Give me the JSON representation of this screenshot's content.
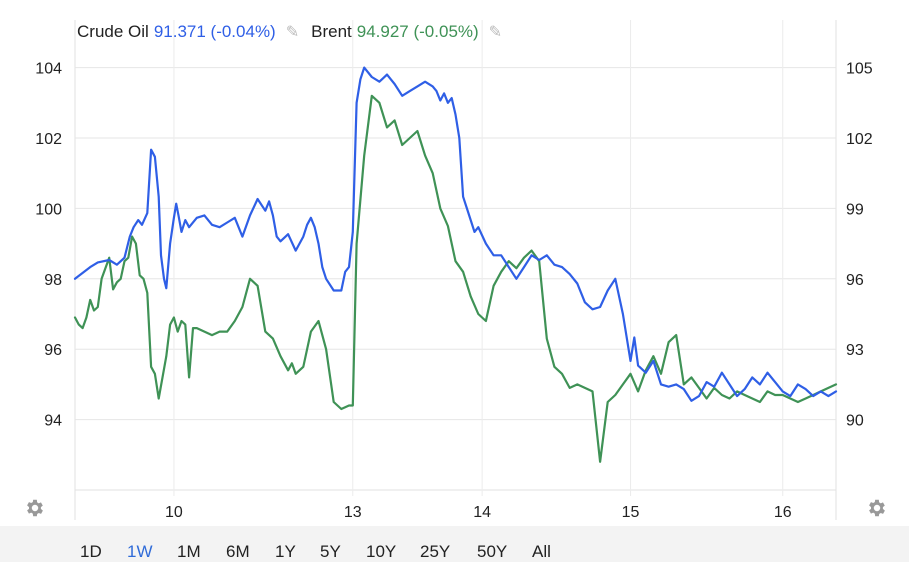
{
  "legend": {
    "series1": {
      "name": "Crude Oil",
      "value": "91.371 (-0.04%)",
      "color": "#2f5fe6",
      "edit_icon": "pencil-icon"
    },
    "series2": {
      "name": "Brent",
      "value": "94.927 (-0.05%)",
      "color": "#3f9256",
      "edit_icon": "pencil-icon"
    }
  },
  "settings_icon": "gear-icon",
  "range_buttons": [
    "1D",
    "1W",
    "1M",
    "6M",
    "1Y",
    "5Y",
    "10Y",
    "25Y",
    "50Y",
    "All"
  ],
  "active_range": "1W",
  "chart_data": {
    "type": "line",
    "x_axis": {
      "ticks": [
        "10",
        "13",
        "14",
        "15",
        "16"
      ],
      "tick_positions": [
        0.13,
        0.365,
        0.535,
        0.73,
        0.93
      ],
      "range": [
        0,
        1
      ]
    },
    "left_axis": {
      "ticks": [
        "94",
        "96",
        "98",
        "100",
        "102",
        "104"
      ],
      "range": [
        92,
        104.5
      ]
    },
    "right_axis": {
      "ticks": [
        "90",
        "93",
        "96",
        "99",
        "102",
        "105"
      ],
      "range": [
        87,
        105.75
      ]
    },
    "grid": true,
    "series": [
      {
        "name": "Crude Oil",
        "axis": "right",
        "color": "#2f5fe6",
        "x": [
          0.0,
          0.02,
          0.03,
          0.045,
          0.055,
          0.065,
          0.072,
          0.077,
          0.083,
          0.088,
          0.095,
          0.1,
          0.105,
          0.11,
          0.113,
          0.117,
          0.12,
          0.125,
          0.13,
          0.133,
          0.136,
          0.14,
          0.145,
          0.15,
          0.16,
          0.17,
          0.18,
          0.19,
          0.2,
          0.21,
          0.22,
          0.23,
          0.24,
          0.25,
          0.255,
          0.26,
          0.265,
          0.27,
          0.28,
          0.29,
          0.3,
          0.305,
          0.31,
          0.315,
          0.32,
          0.325,
          0.33,
          0.34,
          0.35,
          0.355,
          0.36,
          0.365,
          0.37,
          0.375,
          0.38,
          0.39,
          0.4,
          0.41,
          0.415,
          0.42,
          0.43,
          0.44,
          0.45,
          0.46,
          0.47,
          0.475,
          0.48,
          0.485,
          0.49,
          0.495,
          0.5,
          0.505,
          0.51,
          0.515,
          0.52,
          0.525,
          0.53,
          0.54,
          0.55,
          0.56,
          0.57,
          0.58,
          0.59,
          0.6,
          0.61,
          0.62,
          0.63,
          0.64,
          0.65,
          0.66,
          0.67,
          0.68,
          0.69,
          0.7,
          0.71,
          0.72,
          0.73,
          0.735,
          0.74,
          0.75,
          0.76,
          0.77,
          0.78,
          0.79,
          0.8,
          0.81,
          0.82,
          0.83,
          0.84,
          0.85,
          0.86,
          0.87,
          0.88,
          0.89,
          0.9,
          0.91,
          0.92,
          0.93,
          0.94,
          0.95,
          0.96,
          0.97,
          0.98,
          0.99,
          1.0
        ],
        "values": [
          96.0,
          96.5,
          96.7,
          96.8,
          96.6,
          96.9,
          97.8,
          98.2,
          98.5,
          98.3,
          98.8,
          101.5,
          101.2,
          99.5,
          97.0,
          96.0,
          95.6,
          97.5,
          98.6,
          99.2,
          98.7,
          98.0,
          98.5,
          98.2,
          98.6,
          98.7,
          98.3,
          98.2,
          98.4,
          98.6,
          97.8,
          98.7,
          99.4,
          98.9,
          99.3,
          98.7,
          97.8,
          97.6,
          97.9,
          97.2,
          97.8,
          98.3,
          98.6,
          98.2,
          97.5,
          96.5,
          96.0,
          95.5,
          95.5,
          96.3,
          96.5,
          98.0,
          103.5,
          104.5,
          105.0,
          104.6,
          104.4,
          104.7,
          104.5,
          104.3,
          103.8,
          104.0,
          104.2,
          104.4,
          104.2,
          104.0,
          103.6,
          103.9,
          103.5,
          103.7,
          103.0,
          102.0,
          99.5,
          99.0,
          98.5,
          98.0,
          98.2,
          97.5,
          97.0,
          97.0,
          96.5,
          96.0,
          96.5,
          97.0,
          96.8,
          97.0,
          96.6,
          96.5,
          96.2,
          95.8,
          95.0,
          94.7,
          94.8,
          95.5,
          96.0,
          94.5,
          92.5,
          93.5,
          92.3,
          92.0,
          92.5,
          91.5,
          91.4,
          91.5,
          91.3,
          90.8,
          91.0,
          91.6,
          91.4,
          92.0,
          91.5,
          91.0,
          91.3,
          91.8,
          91.5,
          92.0,
          91.6,
          91.2,
          91.0,
          91.5,
          91.3,
          91.0,
          91.2,
          91.0,
          91.2
        ]
      },
      {
        "name": "Brent",
        "axis": "left",
        "color": "#3f9256",
        "x": [
          0.0,
          0.005,
          0.01,
          0.015,
          0.02,
          0.025,
          0.03,
          0.035,
          0.04,
          0.045,
          0.05,
          0.055,
          0.06,
          0.065,
          0.07,
          0.075,
          0.08,
          0.085,
          0.09,
          0.095,
          0.1,
          0.105,
          0.11,
          0.115,
          0.12,
          0.125,
          0.13,
          0.135,
          0.14,
          0.145,
          0.15,
          0.155,
          0.16,
          0.17,
          0.18,
          0.19,
          0.2,
          0.21,
          0.22,
          0.23,
          0.24,
          0.25,
          0.26,
          0.27,
          0.28,
          0.285,
          0.29,
          0.3,
          0.31,
          0.32,
          0.33,
          0.34,
          0.35,
          0.36,
          0.365,
          0.37,
          0.38,
          0.39,
          0.4,
          0.41,
          0.42,
          0.43,
          0.44,
          0.45,
          0.46,
          0.47,
          0.48,
          0.49,
          0.5,
          0.51,
          0.52,
          0.53,
          0.54,
          0.55,
          0.56,
          0.57,
          0.58,
          0.59,
          0.6,
          0.61,
          0.62,
          0.63,
          0.64,
          0.65,
          0.66,
          0.67,
          0.68,
          0.69,
          0.7,
          0.71,
          0.72,
          0.73,
          0.74,
          0.75,
          0.76,
          0.77,
          0.78,
          0.79,
          0.8,
          0.81,
          0.82,
          0.83,
          0.84,
          0.85,
          0.86,
          0.87,
          0.88,
          0.89,
          0.9,
          0.91,
          0.92,
          0.93,
          0.94,
          0.95,
          0.96,
          0.97,
          0.98,
          0.99,
          1.0
        ],
        "values": [
          96.9,
          96.7,
          96.6,
          96.9,
          97.4,
          97.1,
          97.2,
          98.0,
          98.3,
          98.6,
          97.7,
          97.9,
          98.0,
          98.5,
          98.6,
          99.2,
          99.0,
          98.1,
          98.0,
          97.6,
          95.5,
          95.3,
          94.6,
          95.2,
          95.8,
          96.7,
          96.9,
          96.5,
          96.8,
          96.7,
          95.2,
          96.6,
          96.6,
          96.5,
          96.4,
          96.5,
          96.5,
          96.8,
          97.2,
          98.0,
          97.8,
          96.5,
          96.3,
          95.8,
          95.4,
          95.6,
          95.3,
          95.5,
          96.5,
          96.8,
          96.0,
          94.5,
          94.3,
          94.4,
          94.4,
          99.0,
          101.5,
          103.2,
          103.0,
          102.3,
          102.5,
          101.8,
          102.0,
          102.2,
          101.5,
          101.0,
          100.0,
          99.5,
          98.5,
          98.2,
          97.5,
          97.0,
          96.8,
          97.8,
          98.2,
          98.5,
          98.3,
          98.6,
          98.8,
          98.5,
          96.3,
          95.5,
          95.3,
          94.9,
          95.0,
          94.9,
          94.8,
          92.8,
          94.5,
          94.7,
          95.0,
          95.3,
          94.8,
          95.4,
          95.8,
          95.3,
          96.2,
          96.4,
          95.0,
          95.2,
          94.9,
          94.6,
          94.9,
          94.7,
          94.6,
          94.8,
          94.7,
          94.6,
          94.5,
          94.8,
          94.7,
          94.7,
          94.6,
          94.5,
          94.6,
          94.7,
          94.8,
          94.9,
          95.0
        ]
      }
    ]
  }
}
